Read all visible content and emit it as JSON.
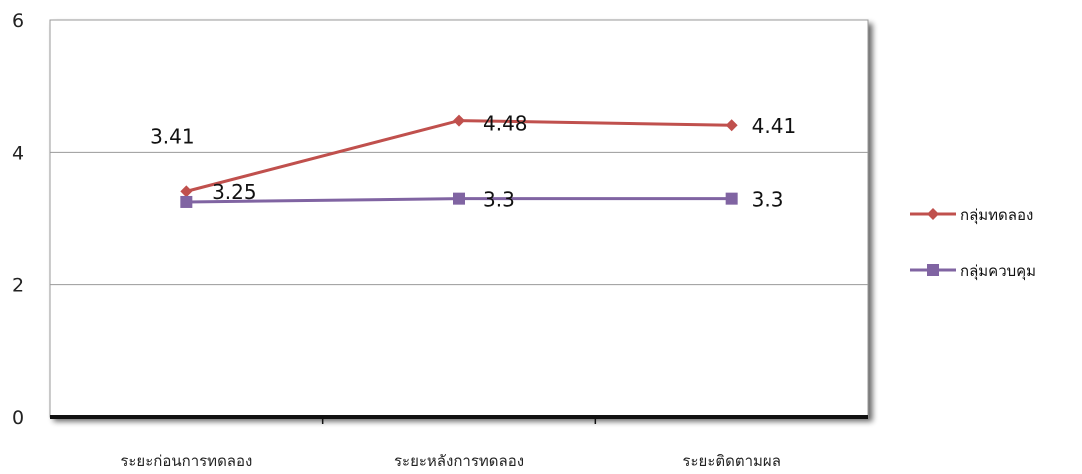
{
  "chart_data": {
    "type": "line",
    "categories": [
      "ระยะก่อนการทดลอง",
      "ระยะหลังการทดลอง",
      "ระยะติดตามผล"
    ],
    "series": [
      {
        "name": "กลุ่มทดลอง",
        "values": [
          3.41,
          4.48,
          4.41
        ],
        "color": "#c0504d",
        "marker": "diamond",
        "labels": [
          "3.41",
          "4.48",
          "4.41"
        ]
      },
      {
        "name": "กลุ่มควบคุม",
        "values": [
          3.25,
          3.3,
          3.3
        ],
        "color": "#8064a2",
        "marker": "square",
        "labels": [
          "3.25",
          "3.3",
          "3.3"
        ]
      }
    ],
    "ylim": [
      0,
      6
    ],
    "yticks": [
      0,
      2,
      4,
      6
    ],
    "grid": true,
    "legend": "right",
    "title": "",
    "xlabel": "",
    "ylabel": ""
  }
}
